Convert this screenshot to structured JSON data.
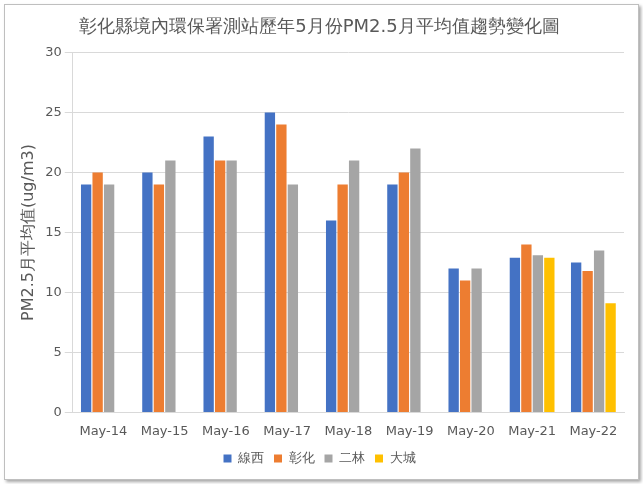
{
  "chart_data": {
    "type": "bar",
    "title": "彰化縣境內環保署測站歷年5月份PM2.5月平均值趨勢變化圖",
    "y_label": "PM2.5月平均值(ug/m3)",
    "categories": [
      "May-14",
      "May-15",
      "May-16",
      "May-17",
      "May-18",
      "May-19",
      "May-20",
      "May-21",
      "May-22"
    ],
    "series": [
      {
        "name": "線西",
        "color": "#4472c4",
        "values": [
          19,
          20,
          23,
          25,
          16,
          19,
          12,
          12.9,
          12.5
        ]
      },
      {
        "name": "彰化",
        "color": "#ed7d31",
        "values": [
          20,
          19,
          21,
          24,
          19,
          20,
          11,
          14,
          11.8
        ]
      },
      {
        "name": "二林",
        "color": "#a5a5a5",
        "values": [
          19,
          21,
          21,
          19,
          21,
          22,
          12,
          13.1,
          13.5
        ]
      },
      {
        "name": "大城",
        "color": "#ffc000",
        "values": [
          null,
          null,
          null,
          null,
          null,
          null,
          null,
          12.9,
          9.1
        ]
      }
    ],
    "ylim": [
      0,
      30
    ],
    "yticks": [
      0,
      5,
      10,
      15,
      20,
      25,
      30
    ],
    "grid": true,
    "legend": "bottom"
  }
}
